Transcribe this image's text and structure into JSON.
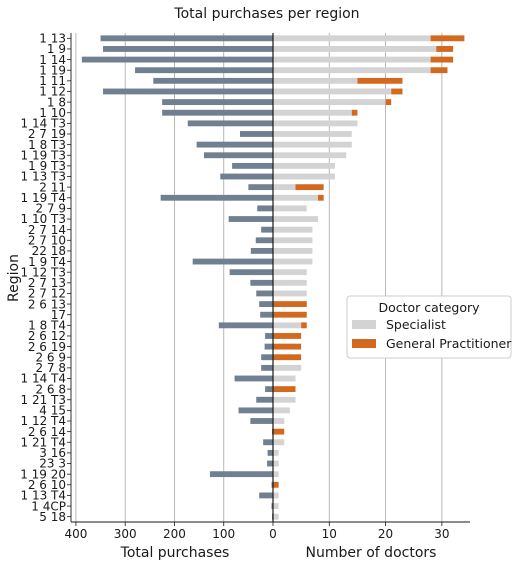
{
  "chart_data": {
    "type": "bar",
    "title": "Total purchases per region",
    "ylabel": "Region",
    "categories": [
      "1 13",
      "1 9",
      "1 14",
      "1 19",
      "1 11",
      "1 12",
      "1 8",
      "1 10",
      "1 14 T3",
      "2 7 19",
      "1 8 T3",
      "1 19 T3",
      "1 9 T3",
      "1 13 T3",
      "2 11",
      "1 19 T4",
      "2 7 9",
      "1 10 T3",
      "2 7 14",
      "2 7 10",
      "22 18",
      "1 9 T4",
      "1 12 T3",
      "2 7 13",
      "2 7 12",
      "2 6 13",
      "17",
      "1 8 T4",
      "2 6 12",
      "2 6 19",
      "2 6 9",
      "2 7 8",
      "1 14 T4",
      "2 6 8",
      "1 21 T3",
      "4 15",
      "1 12 T4",
      "2 6 14",
      "1 21 T4",
      "3 16",
      "23 3",
      "1 19 20",
      "2 6 10",
      "1 13 T4",
      "1 4CP",
      "5 18"
    ],
    "panels": [
      {
        "xlabel": "Total purchases",
        "xlim": [
          410,
          0
        ],
        "xticks": [
          400,
          300,
          200,
          100,
          0
        ],
        "grid": true,
        "series": [
          {
            "color": "#708090",
            "values": [
              350,
              345,
              388,
              280,
              243,
              345,
              225,
              225,
              173,
              67,
              155,
              140,
              83,
              107,
              50,
              228,
              32,
              90,
              24,
              35,
              45,
              163,
              88,
              46,
              34,
              28,
              26,
              110,
              16,
              17,
              24,
              24,
              78,
              16,
              34,
              70,
              46,
              2,
              20,
              11,
              12,
              128,
              3,
              28,
              3,
              2
            ]
          }
        ]
      },
      {
        "xlabel": "Number of doctors",
        "xlim": [
          0,
          35
        ],
        "xticks": [
          0,
          10,
          20,
          30
        ],
        "grid": true,
        "stacked": true,
        "legend": {
          "title": "Doctor category",
          "position": "center-right"
        },
        "series": [
          {
            "name": "Specialist",
            "color": "#d3d3d3",
            "values": [
              28,
              29,
              28,
              28,
              15,
              21,
              20,
              14,
              15,
              14,
              14,
              13,
              11,
              11,
              4,
              8,
              6,
              8,
              7,
              7,
              7,
              7,
              6,
              6,
              6,
              0,
              0,
              5,
              0,
              0,
              0,
              5,
              4,
              0,
              4,
              3,
              2,
              0,
              2,
              1,
              1,
              1,
              0,
              1,
              1,
              1
            ]
          },
          {
            "name": "General Practitioner",
            "color": "#d2691e",
            "values": [
              6,
              3,
              4,
              3,
              8,
              2,
              1,
              1,
              0,
              0,
              0,
              0,
              0,
              0,
              5,
              1,
              0,
              0,
              0,
              0,
              0,
              0,
              0,
              0,
              0,
              6,
              6,
              1,
              5,
              5,
              5,
              0,
              0,
              4,
              0,
              0,
              0,
              2,
              0,
              0,
              0,
              0,
              1,
              0,
              0,
              0
            ]
          }
        ]
      }
    ]
  }
}
